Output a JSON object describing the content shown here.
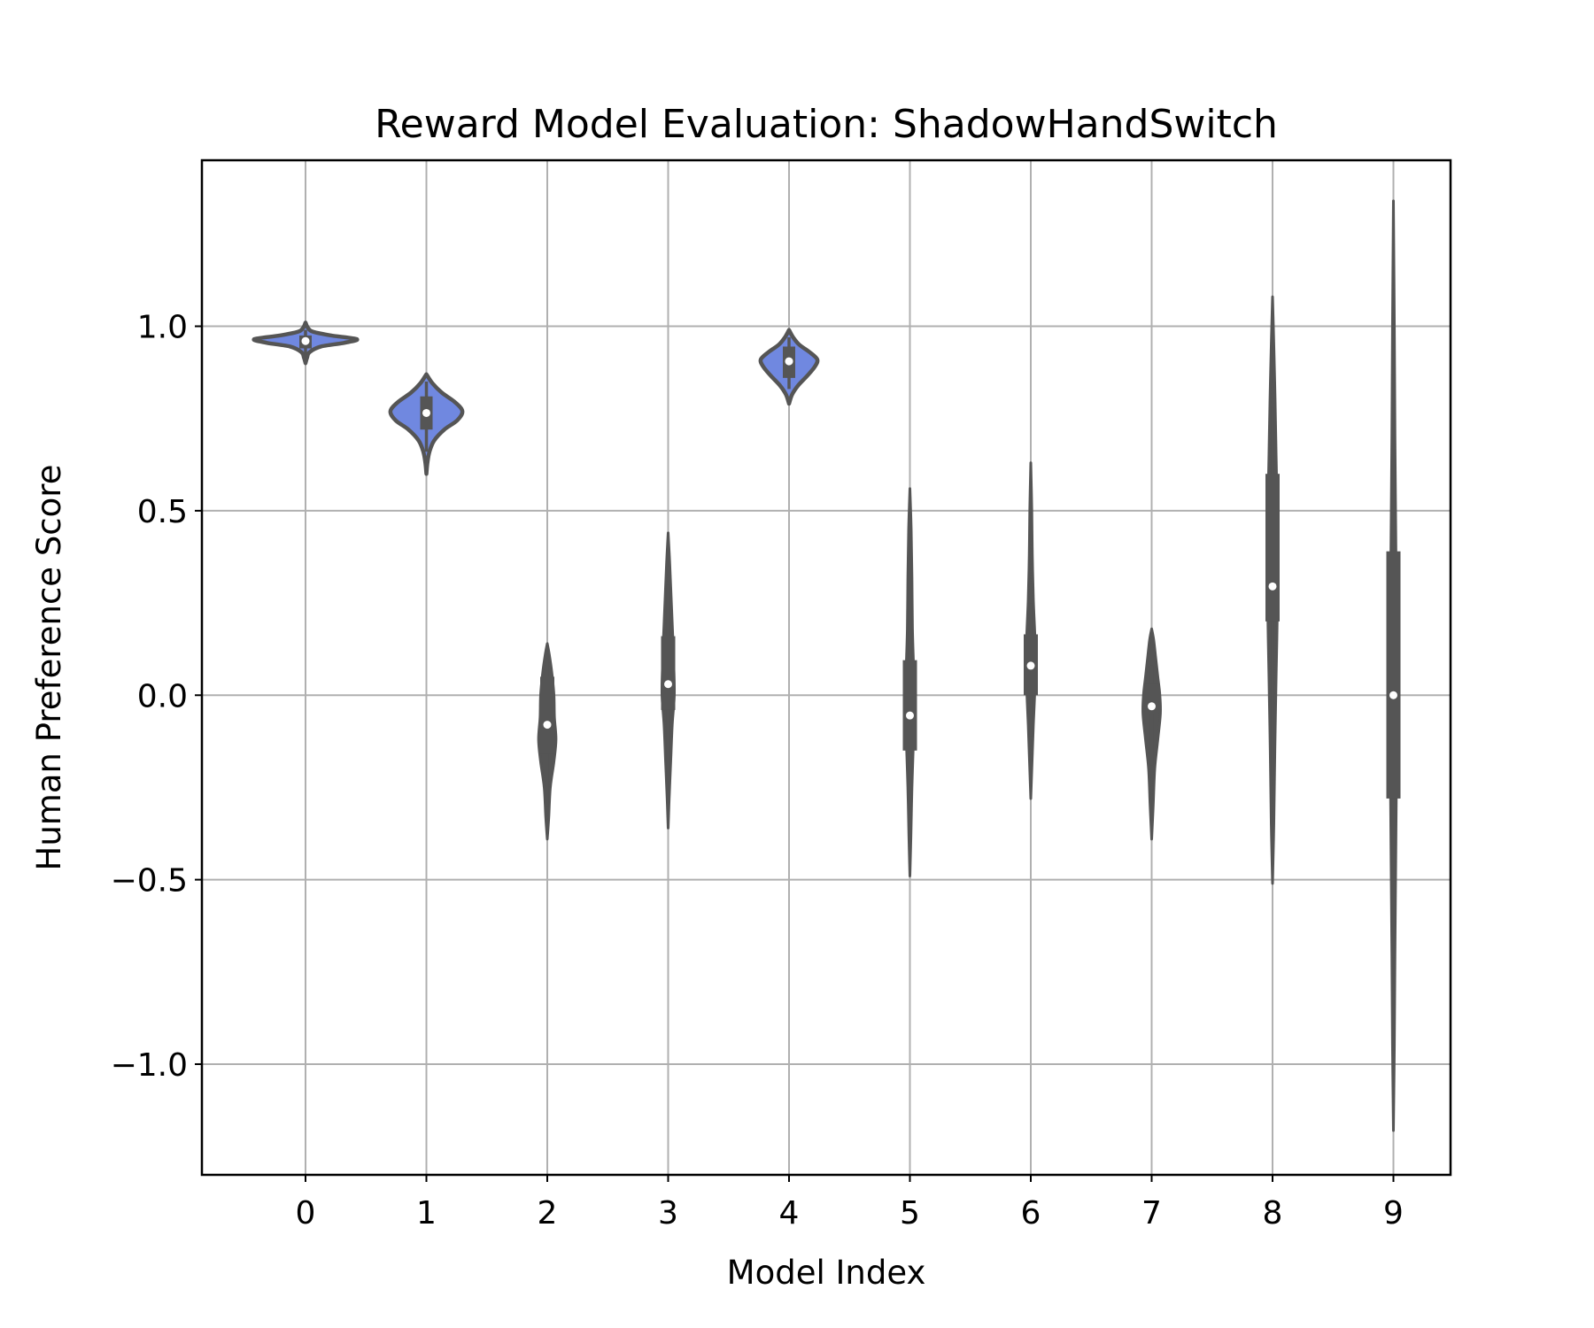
{
  "chart_data": {
    "type": "violin",
    "title": "Reward Model Evaluation: ShadowHandSwitch",
    "xlabel": "Model Index",
    "ylabel": "Human Preference Score",
    "ylim": [
      -1.3,
      1.45
    ],
    "x_ticks": [
      "0",
      "1",
      "2",
      "3",
      "4",
      "5",
      "6",
      "7",
      "8",
      "9"
    ],
    "y_ticks": [
      {
        "value": 1.0,
        "label": "1.0"
      },
      {
        "value": 0.5,
        "label": "0.5"
      },
      {
        "value": 0.0,
        "label": "0.0"
      },
      {
        "value": -0.5,
        "label": "−0.5"
      },
      {
        "value": -1.0,
        "label": "−1.0"
      }
    ],
    "grid": true,
    "colors": {
      "violin_fill": "#7088e0",
      "violin_edge": "#555555",
      "grid": "#b0b0b0",
      "median": "#ffffff"
    },
    "series": [
      {
        "category": "0",
        "min": 0.9,
        "max": 1.01,
        "q1": 0.94,
        "median": 0.96,
        "q3": 0.975,
        "whisker_low": 0.92,
        "whisker_high": 0.99,
        "style": "wide",
        "profile": [
          [
            0.9,
            0.0
          ],
          [
            0.915,
            0.03
          ],
          [
            0.93,
            0.08
          ],
          [
            0.945,
            0.3
          ],
          [
            0.955,
            0.75
          ],
          [
            0.965,
            1.0
          ],
          [
            0.975,
            0.5
          ],
          [
            0.985,
            0.15
          ],
          [
            0.995,
            0.05
          ],
          [
            1.01,
            0.0
          ]
        ]
      },
      {
        "category": "1",
        "min": 0.6,
        "max": 0.87,
        "q1": 0.72,
        "median": 0.765,
        "q3": 0.81,
        "whisker_low": 0.66,
        "whisker_high": 0.85,
        "style": "wide",
        "profile": [
          [
            0.6,
            0.0
          ],
          [
            0.63,
            0.02
          ],
          [
            0.66,
            0.06
          ],
          [
            0.69,
            0.15
          ],
          [
            0.72,
            0.35
          ],
          [
            0.745,
            0.6
          ],
          [
            0.77,
            0.7
          ],
          [
            0.795,
            0.55
          ],
          [
            0.82,
            0.3
          ],
          [
            0.845,
            0.12
          ],
          [
            0.87,
            0.0
          ]
        ]
      },
      {
        "category": "2",
        "min": -0.39,
        "max": 0.14,
        "q1": -0.16,
        "median": -0.08,
        "q3": 0.05,
        "whisker_low": -0.3,
        "whisker_high": 0.1,
        "style": "narrow",
        "profile": [
          [
            -0.39,
            0.0
          ],
          [
            -0.33,
            0.03
          ],
          [
            -0.25,
            0.06
          ],
          [
            -0.18,
            0.13
          ],
          [
            -0.12,
            0.17
          ],
          [
            -0.06,
            0.14
          ],
          [
            0.0,
            0.13
          ],
          [
            0.06,
            0.09
          ],
          [
            0.11,
            0.04
          ],
          [
            0.14,
            0.0
          ]
        ]
      },
      {
        "category": "3",
        "min": -0.36,
        "max": 0.44,
        "q1": -0.04,
        "median": 0.03,
        "q3": 0.16,
        "whisker_low": -0.22,
        "whisker_high": 0.3,
        "style": "narrow",
        "profile": [
          [
            -0.36,
            0.0
          ],
          [
            -0.28,
            0.02
          ],
          [
            -0.18,
            0.05
          ],
          [
            -0.08,
            0.08
          ],
          [
            0.0,
            0.12
          ],
          [
            0.08,
            0.11
          ],
          [
            0.16,
            0.09
          ],
          [
            0.26,
            0.06
          ],
          [
            0.36,
            0.03
          ],
          [
            0.44,
            0.0
          ]
        ]
      },
      {
        "category": "4",
        "min": 0.79,
        "max": 0.99,
        "q1": 0.86,
        "median": 0.905,
        "q3": 0.945,
        "whisker_low": 0.83,
        "whisker_high": 0.97,
        "style": "wide",
        "profile": [
          [
            0.79,
            0.0
          ],
          [
            0.815,
            0.06
          ],
          [
            0.84,
            0.18
          ],
          [
            0.865,
            0.35
          ],
          [
            0.89,
            0.5
          ],
          [
            0.91,
            0.55
          ],
          [
            0.93,
            0.4
          ],
          [
            0.95,
            0.2
          ],
          [
            0.97,
            0.08
          ],
          [
            0.99,
            0.0
          ]
        ]
      },
      {
        "category": "5",
        "min": -0.49,
        "max": 0.56,
        "q1": -0.15,
        "median": -0.055,
        "q3": 0.095,
        "whisker_low": -0.3,
        "whisker_high": 0.37,
        "style": "narrow",
        "profile": [
          [
            -0.49,
            0.0
          ],
          [
            -0.38,
            0.02
          ],
          [
            -0.25,
            0.04
          ],
          [
            -0.12,
            0.07
          ],
          [
            -0.03,
            0.085
          ],
          [
            0.06,
            0.075
          ],
          [
            0.18,
            0.05
          ],
          [
            0.32,
            0.04
          ],
          [
            0.45,
            0.025
          ],
          [
            0.56,
            0.0
          ]
        ]
      },
      {
        "category": "6",
        "min": -0.28,
        "max": 0.63,
        "q1": 0.0,
        "median": 0.08,
        "q3": 0.165,
        "whisker_low": -0.11,
        "whisker_high": 0.25,
        "style": "narrow",
        "profile": [
          [
            -0.28,
            0.0
          ],
          [
            -0.18,
            0.025
          ],
          [
            -0.08,
            0.05
          ],
          [
            0.0,
            0.075
          ],
          [
            0.08,
            0.095
          ],
          [
            0.16,
            0.08
          ],
          [
            0.26,
            0.05
          ],
          [
            0.38,
            0.03
          ],
          [
            0.5,
            0.02
          ],
          [
            0.63,
            0.0
          ]
        ]
      },
      {
        "category": "7",
        "min": -0.39,
        "max": 0.18,
        "q1": -0.05,
        "median": -0.03,
        "q3": 0.03,
        "whisker_low": -0.19,
        "whisker_high": 0.08,
        "style": "narrow",
        "profile": [
          [
            -0.39,
            0.0
          ],
          [
            -0.3,
            0.03
          ],
          [
            -0.2,
            0.06
          ],
          [
            -0.12,
            0.12
          ],
          [
            -0.05,
            0.17
          ],
          [
            0.0,
            0.16
          ],
          [
            0.05,
            0.12
          ],
          [
            0.1,
            0.08
          ],
          [
            0.15,
            0.04
          ],
          [
            0.18,
            0.0
          ]
        ]
      },
      {
        "category": "8",
        "min": -0.51,
        "max": 1.08,
        "q1": 0.2,
        "median": 0.295,
        "q3": 0.6,
        "whisker_low": -0.22,
        "whisker_high": 0.78,
        "style": "narrow",
        "profile": [
          [
            -0.51,
            0.0
          ],
          [
            -0.35,
            0.025
          ],
          [
            -0.15,
            0.045
          ],
          [
            0.05,
            0.07
          ],
          [
            0.2,
            0.09
          ],
          [
            0.35,
            0.1
          ],
          [
            0.5,
            0.09
          ],
          [
            0.65,
            0.07
          ],
          [
            0.8,
            0.05
          ],
          [
            0.95,
            0.025
          ],
          [
            1.08,
            0.0
          ]
        ]
      },
      {
        "category": "9",
        "min": -1.18,
        "max": 1.34,
        "q1": -0.28,
        "median": 0.0,
        "q3": 0.39,
        "whisker_low": -0.71,
        "whisker_high": 0.87,
        "style": "narrow",
        "profile": [
          [
            -1.18,
            0.0
          ],
          [
            -0.95,
            0.018
          ],
          [
            -0.7,
            0.03
          ],
          [
            -0.45,
            0.045
          ],
          [
            -0.2,
            0.06
          ],
          [
            0.0,
            0.07
          ],
          [
            0.2,
            0.06
          ],
          [
            0.45,
            0.045
          ],
          [
            0.7,
            0.03
          ],
          [
            1.0,
            0.018
          ],
          [
            1.34,
            0.0
          ]
        ]
      }
    ]
  }
}
